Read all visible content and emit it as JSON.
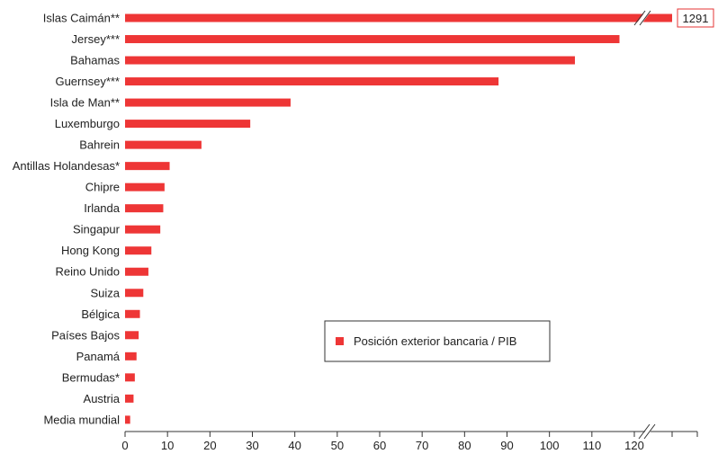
{
  "chart_data": {
    "type": "bar",
    "orientation": "horizontal",
    "categories": [
      "Islas Caimán**",
      "Jersey***",
      "Bahamas",
      "Guernsey***",
      "Isla de Man**",
      "Luxemburgo",
      "Bahrein",
      "Antillas Holandesas*",
      "Chipre",
      "Irlanda",
      "Singapur",
      "Hong Kong",
      "Reino Unido",
      "Suiza",
      "Bélgica",
      "Países Bajos",
      "Panamá",
      "Bermudas*",
      "Austria",
      "Media mundial"
    ],
    "series": [
      {
        "name": "Posición exterior bancaria / PIB",
        "values": [
          1291,
          116.5,
          106,
          88,
          39,
          29.5,
          18,
          10.5,
          9.3,
          9,
          8.3,
          6.2,
          5.5,
          4.3,
          3.5,
          3.2,
          2.7,
          2.3,
          2,
          1.2
        ]
      }
    ],
    "axis_break": {
      "category": "Islas Caimán**",
      "label": "1291"
    },
    "xticks": [
      0,
      10,
      20,
      30,
      40,
      50,
      60,
      70,
      80,
      90,
      100,
      110,
      120
    ],
    "xlim": [
      0,
      120
    ],
    "legend": {
      "position": "bottom-center-right"
    },
    "grid": false,
    "colors": {
      "bar": "#ee3636",
      "axis": "#333333",
      "break_box": "#e53535"
    }
  }
}
